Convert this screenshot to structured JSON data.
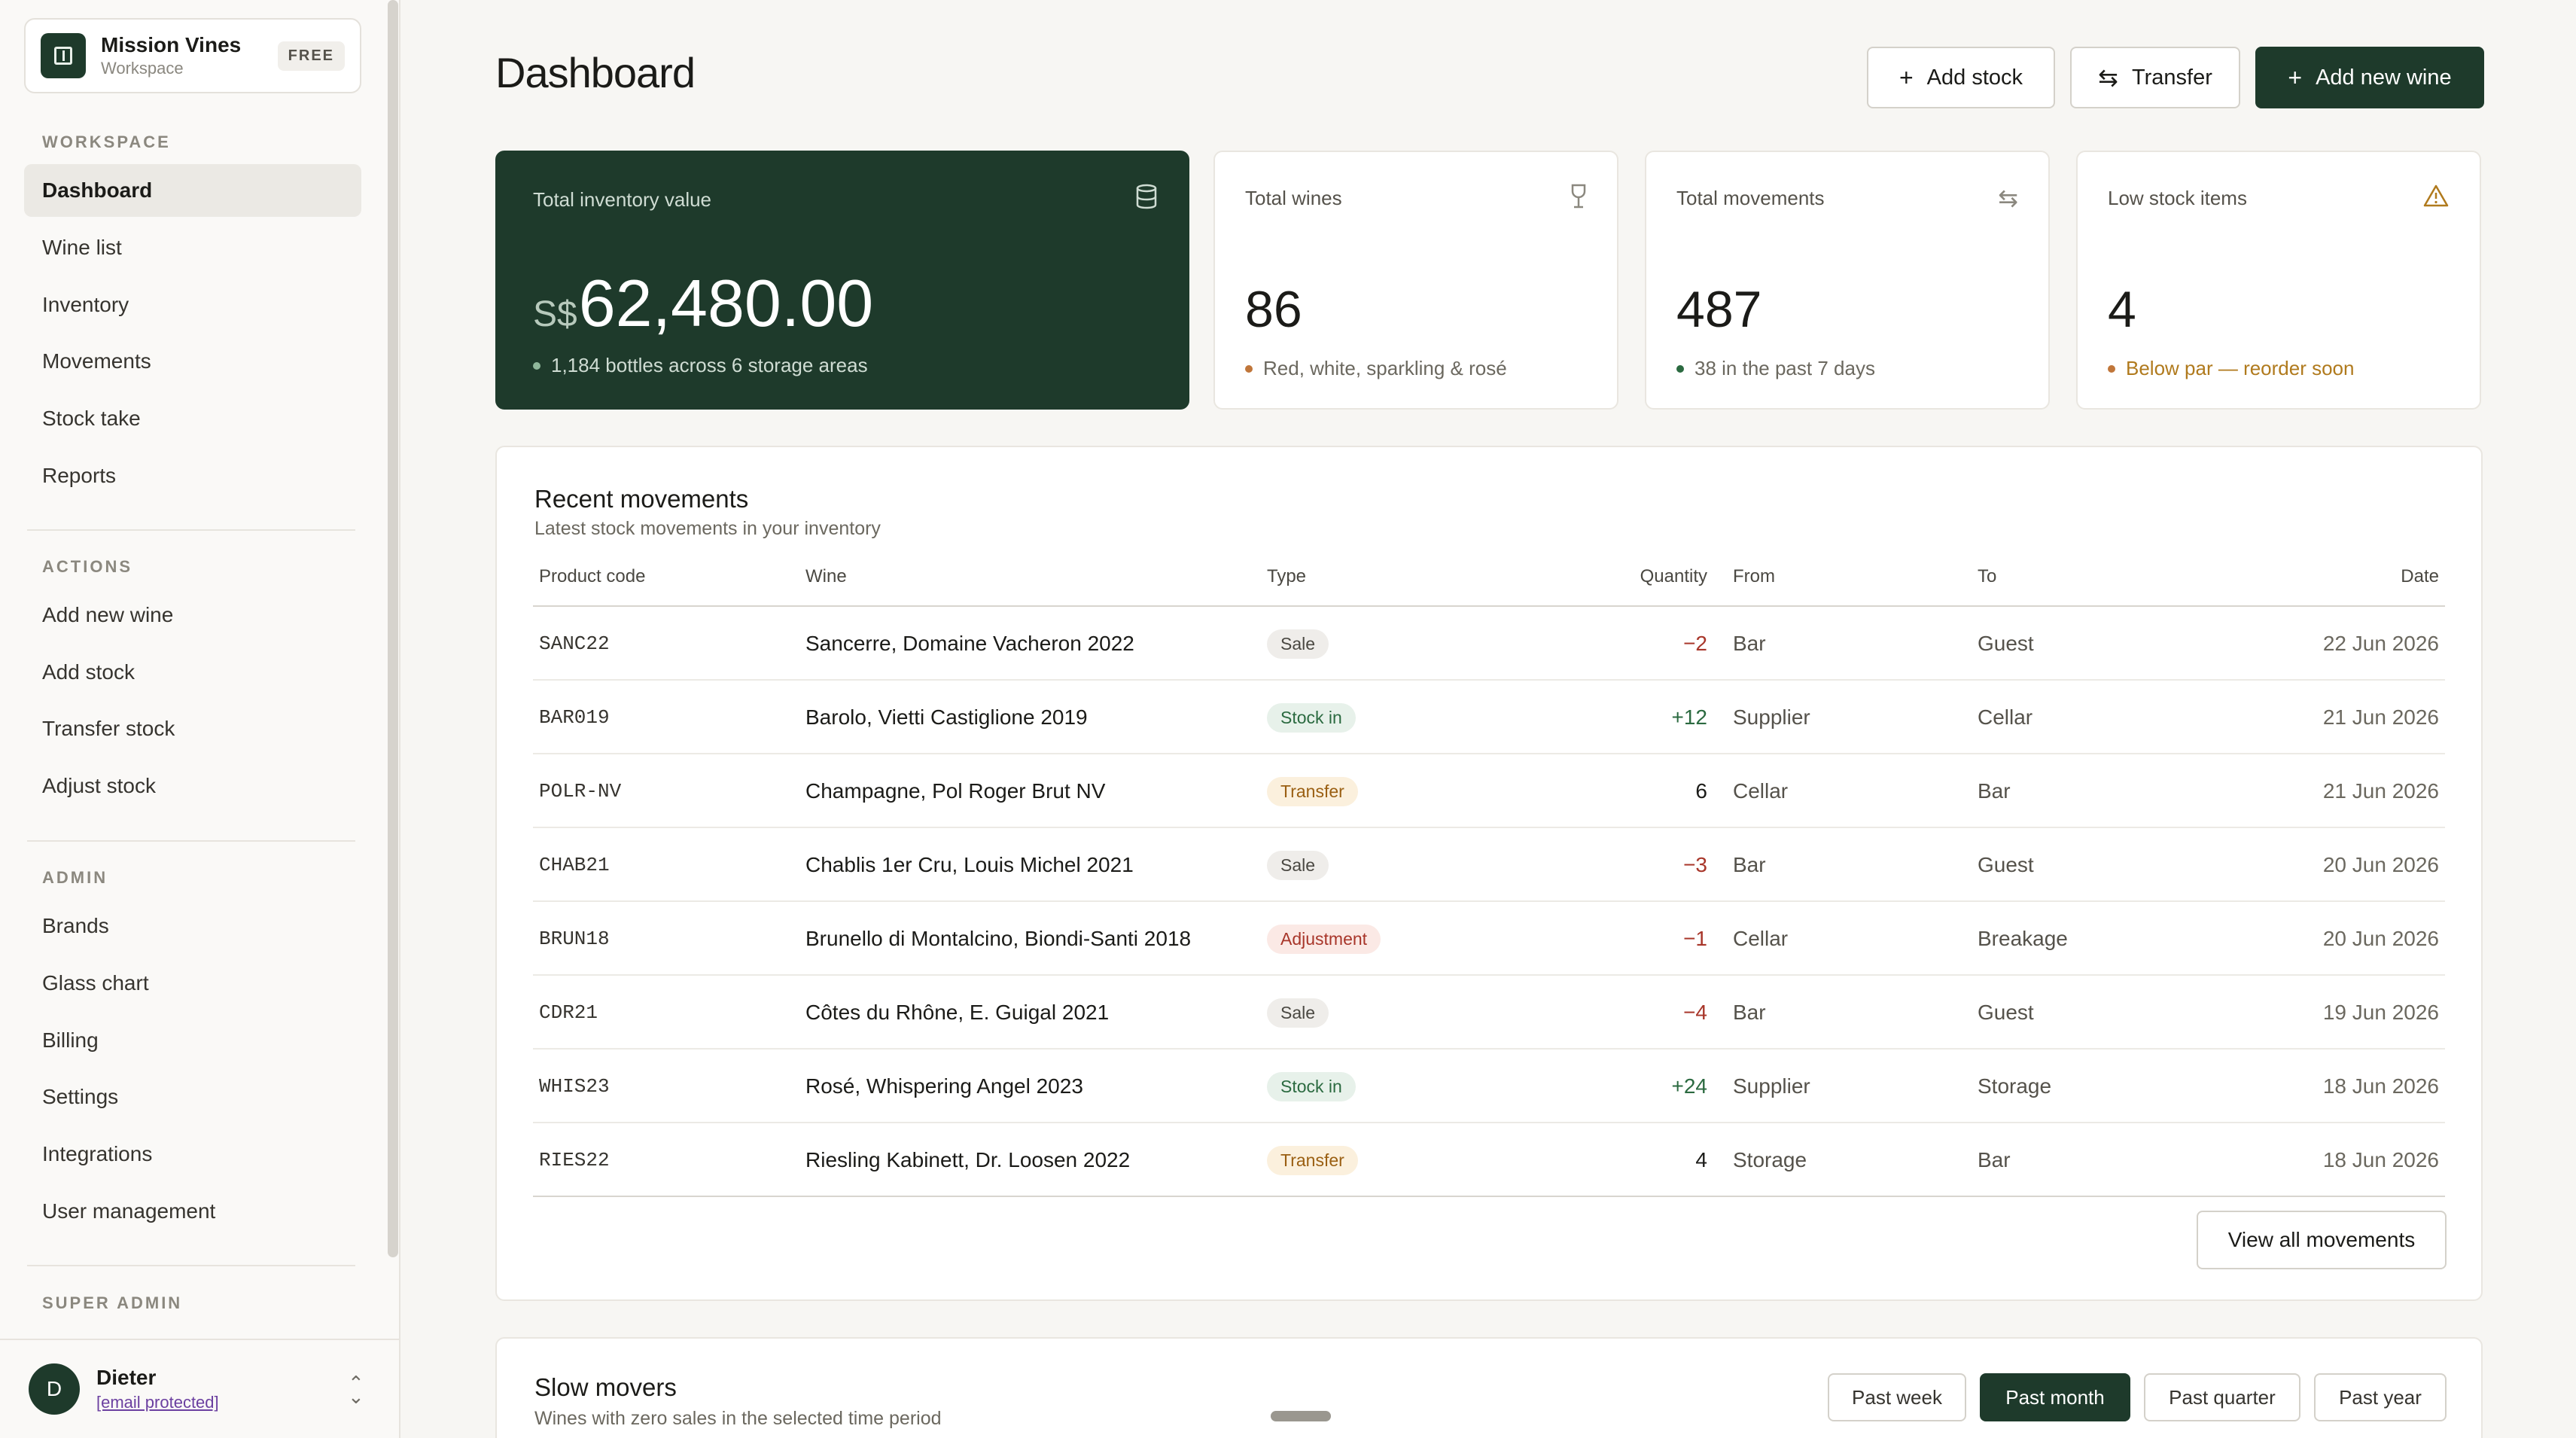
{
  "workspace": {
    "name": "Mission Vines",
    "sub": "Workspace",
    "plan": "FREE"
  },
  "sidebar": {
    "sections": [
      {
        "heading": "WORKSPACE",
        "items": [
          "Dashboard",
          "Wine list",
          "Inventory",
          "Movements",
          "Stock take",
          "Reports"
        ]
      },
      {
        "heading": "ACTIONS",
        "items": [
          "Add new wine",
          "Add stock",
          "Transfer stock",
          "Adjust stock"
        ]
      },
      {
        "heading": "ADMIN",
        "items": [
          "Brands",
          "Glass chart",
          "Billing",
          "Settings",
          "Integrations",
          "User management"
        ]
      },
      {
        "heading": "SUPER ADMIN",
        "items": []
      }
    ],
    "active": "Dashboard"
  },
  "user": {
    "initial": "D",
    "name": "Dieter",
    "email": "[email protected]"
  },
  "header": {
    "title": "Dashboard",
    "add_stock": "Add stock",
    "transfer": "Transfer",
    "add_wine": "Add new wine"
  },
  "stats": {
    "inventory": {
      "label": "Total inventory value",
      "currency": "S$",
      "value": "62,480.00",
      "note": "1,184 bottles across 6 storage areas"
    },
    "wines": {
      "label": "Total wines",
      "value": "86",
      "note": "Red, white, sparkling & rosé"
    },
    "movements": {
      "label": "Total movements",
      "value": "487",
      "note": "38 in the past 7 days"
    },
    "low": {
      "label": "Low stock items",
      "value": "4",
      "note": "Below par — reorder soon"
    }
  },
  "colors": {
    "accent": "#1e3a2b",
    "warning": "#b07a1d",
    "negative": "#a8362a",
    "positive": "#2b6a40"
  },
  "recent": {
    "title": "Recent movements",
    "subtitle": "Latest stock movements in your inventory",
    "columns": {
      "code": "Product code",
      "wine": "Wine",
      "type": "Type",
      "qty": "Quantity",
      "from": "From",
      "to": "To",
      "date": "Date"
    },
    "rows": [
      {
        "code": "SANC22",
        "wine": "Sancerre, Domaine Vacheron 2022",
        "type": "Sale",
        "kind": "sale",
        "qty": "−2",
        "sign": "neg",
        "from": "Bar",
        "to": "Guest",
        "date": "22 Jun 2026"
      },
      {
        "code": "BAR019",
        "wine": "Barolo, Vietti Castiglione 2019",
        "type": "Stock in",
        "kind": "stockin",
        "qty": "+12",
        "sign": "pos",
        "from": "Supplier",
        "to": "Cellar",
        "date": "21 Jun 2026"
      },
      {
        "code": "POLR-NV",
        "wine": "Champagne, Pol Roger Brut NV",
        "type": "Transfer",
        "kind": "transfer",
        "qty": "6",
        "sign": "neutral",
        "from": "Cellar",
        "to": "Bar",
        "date": "21 Jun 2026"
      },
      {
        "code": "CHAB21",
        "wine": "Chablis 1er Cru, Louis Michel 2021",
        "type": "Sale",
        "kind": "sale",
        "qty": "−3",
        "sign": "neg",
        "from": "Bar",
        "to": "Guest",
        "date": "20 Jun 2026"
      },
      {
        "code": "BRUN18",
        "wine": "Brunello di Montalcino, Biondi-Santi 2018",
        "type": "Adjustment",
        "kind": "adjust",
        "qty": "−1",
        "sign": "neg",
        "from": "Cellar",
        "to": "Breakage",
        "date": "20 Jun 2026"
      },
      {
        "code": "CDR21",
        "wine": "Côtes du Rhône, E. Guigal 2021",
        "type": "Sale",
        "kind": "sale",
        "qty": "−4",
        "sign": "neg",
        "from": "Bar",
        "to": "Guest",
        "date": "19 Jun 2026"
      },
      {
        "code": "WHIS23",
        "wine": "Rosé, Whispering Angel 2023",
        "type": "Stock in",
        "kind": "stockin",
        "qty": "+24",
        "sign": "pos",
        "from": "Supplier",
        "to": "Storage",
        "date": "18 Jun 2026"
      },
      {
        "code": "RIES22",
        "wine": "Riesling Kabinett, Dr. Loosen 2022",
        "type": "Transfer",
        "kind": "transfer",
        "qty": "4",
        "sign": "neutral",
        "from": "Storage",
        "to": "Bar",
        "date": "18 Jun 2026"
      }
    ],
    "view_all": "View all movements"
  },
  "slow": {
    "title": "Slow movers",
    "subtitle": "Wines with zero sales in the selected time period",
    "periods": [
      "Past week",
      "Past month",
      "Past quarter",
      "Past year"
    ],
    "active_period": "Past month"
  }
}
